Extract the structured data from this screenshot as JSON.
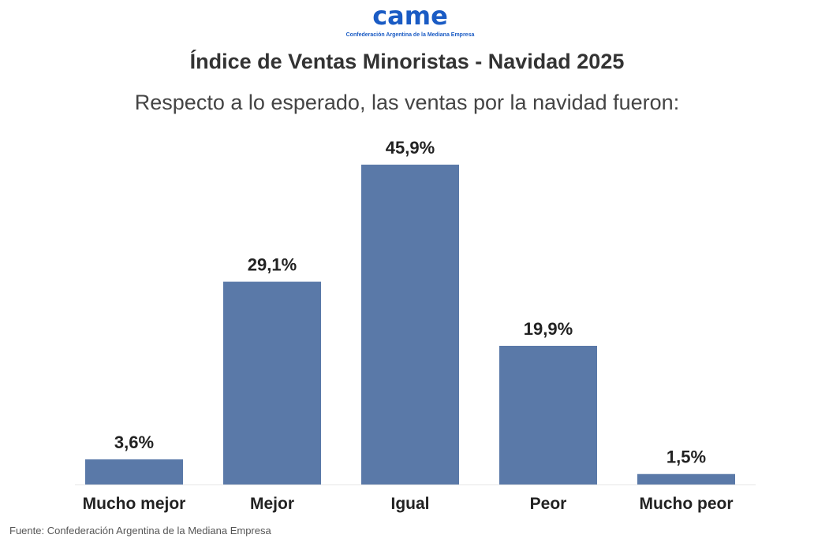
{
  "logo": {
    "mark": "came",
    "tagline": "Confederación Argentina de la Mediana Empresa"
  },
  "chart_data": {
    "type": "bar",
    "title": "Índice de Ventas Minoristas - Navidad 2025",
    "subtitle": "Respecto a lo esperado, las ventas por la navidad fueron:",
    "categories": [
      "Mucho mejor",
      "Mejor",
      "Igual",
      "Peor",
      "Mucho peor"
    ],
    "values": [
      3.6,
      29.1,
      45.9,
      19.9,
      1.5
    ],
    "data_labels": [
      "3,6%",
      "29,1%",
      "45,9%",
      "19,9%",
      "1,5%"
    ],
    "xlabel": "",
    "ylabel": "",
    "ylim": [
      0,
      50
    ],
    "grid": false,
    "bar_color": "#5a79a8"
  },
  "source": "Fuente: Confederación Argentina de la Mediana Empresa"
}
